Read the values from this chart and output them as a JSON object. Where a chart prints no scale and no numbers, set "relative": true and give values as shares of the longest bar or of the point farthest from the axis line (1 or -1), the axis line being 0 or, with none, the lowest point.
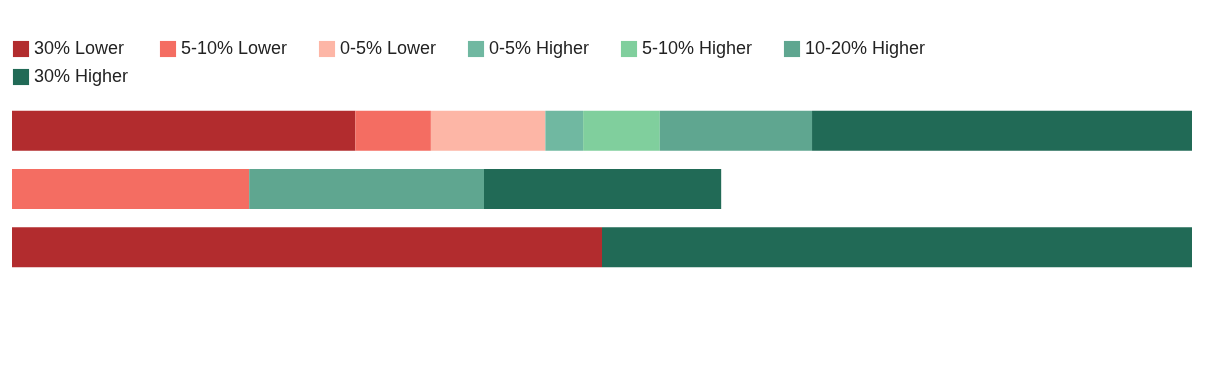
{
  "chart_data": {
    "type": "bar",
    "orientation": "horizontal",
    "stacked": true,
    "relative": true,
    "legend": "top",
    "categories": [
      null,
      null,
      null
    ],
    "series": [
      {
        "name": "30% Lower",
        "color": "#b22c2e",
        "values": [
          0.291,
          null,
          0.5
        ]
      },
      {
        "name": "5-10% Lower",
        "color": "#f46d62",
        "values": [
          0.064,
          0.201,
          null
        ]
      },
      {
        "name": "0-5% Lower",
        "color": "#fdb6a6",
        "values": [
          0.097,
          null,
          null
        ]
      },
      {
        "name": "0-5% Higher",
        "color": "#70b8a1",
        "values": [
          0.032,
          null,
          null
        ]
      },
      {
        "name": "5-10% Higher",
        "color": "#80cf9d",
        "values": [
          0.065,
          null,
          null
        ]
      },
      {
        "name": "10-20% Higher",
        "color": "#5fa690",
        "values": [
          0.129,
          0.199,
          null
        ]
      },
      {
        "name": "30% Higher",
        "color": "#216a56",
        "values": [
          0.322,
          0.201,
          0.5
        ]
      }
    ]
  }
}
